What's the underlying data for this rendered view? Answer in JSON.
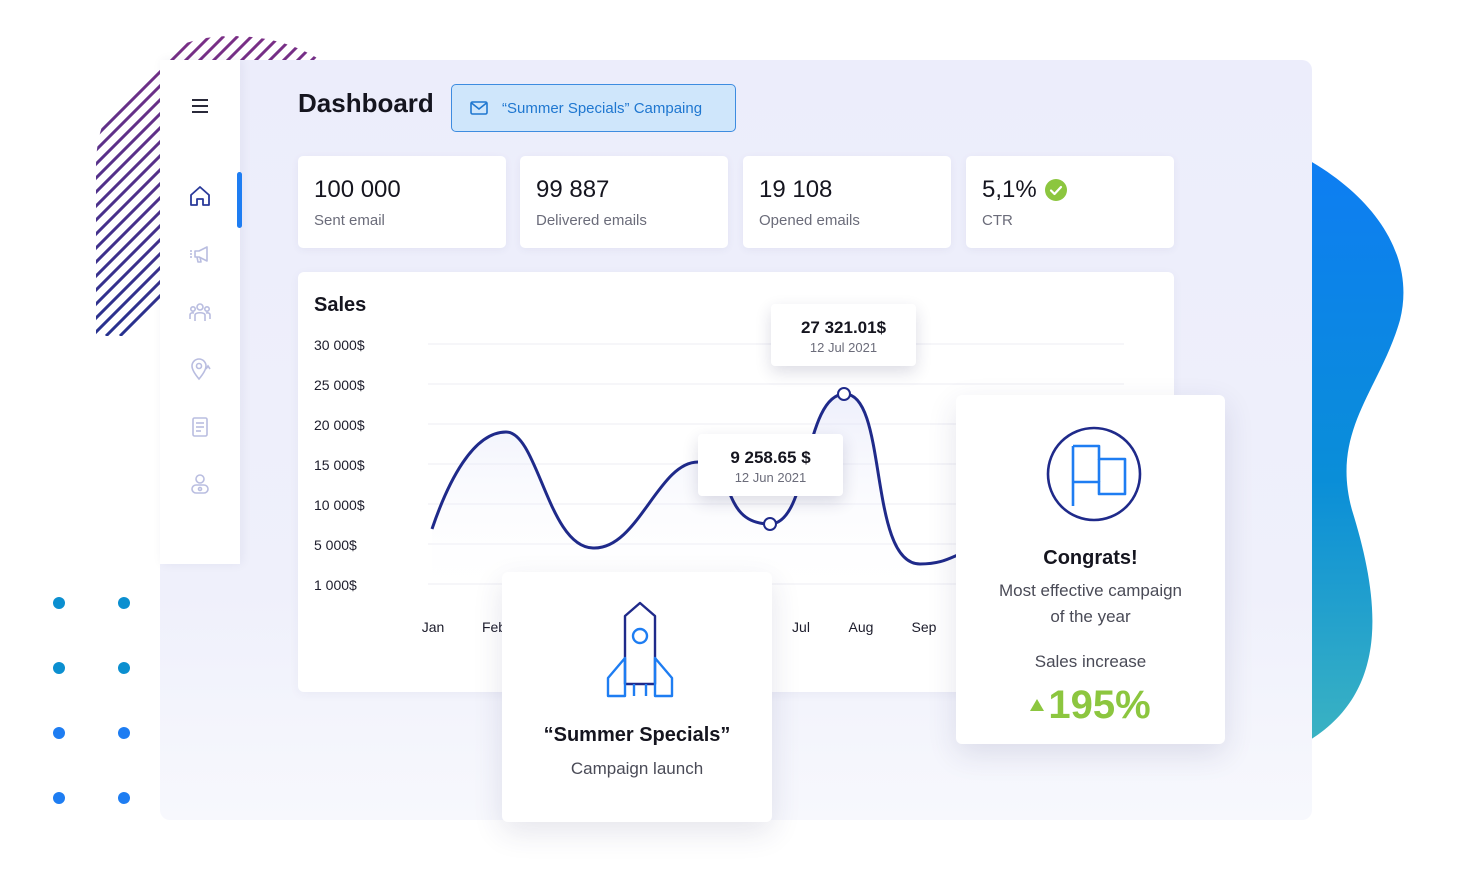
{
  "header": {
    "title": "Dashboard",
    "campaign_chip": "“Summer Specials” Campaing"
  },
  "sidebar": {
    "items": [
      {
        "icon": "menu-icon"
      },
      {
        "icon": "home-icon",
        "active": true
      },
      {
        "icon": "megaphone-icon"
      },
      {
        "icon": "users-icon"
      },
      {
        "icon": "location-icon"
      },
      {
        "icon": "document-icon"
      },
      {
        "icon": "user-icon"
      }
    ]
  },
  "stats": [
    {
      "value": "100 000",
      "label": "Sent email"
    },
    {
      "value": "99 887",
      "label": "Delivered emails"
    },
    {
      "value": "19 108",
      "label": "Opened emails"
    },
    {
      "value": "5,1%",
      "label": "CTR",
      "badge": "check-circle-icon"
    }
  ],
  "sales": {
    "title": "Sales",
    "y_ticks": [
      "30 000$",
      "25 000$",
      "20 000$",
      "15 000$",
      "10 000$",
      "5 000$",
      "1 000$"
    ],
    "x_ticks": [
      "Jan",
      "Feb",
      "Jul",
      "Aug",
      "Sep"
    ],
    "tooltips": [
      {
        "value": "27 321.01$",
        "date": "12 Jul 2021"
      },
      {
        "value": "9 258.65 $",
        "date": "12 Jun 2021"
      }
    ]
  },
  "chart_data": {
    "type": "line",
    "title": "Sales",
    "yticks": [
      "30 000$",
      "25 000$",
      "20 000$",
      "15 000$",
      "10 000$",
      "5 000$",
      "1 000$"
    ],
    "xticks": [
      "Jan",
      "Feb",
      "Jul",
      "Aug",
      "Sep"
    ],
    "annotations": [
      {
        "label": "27 321.01$",
        "date": "12 Jul 2021"
      },
      {
        "label": "9 258.65 $",
        "date": "12 Jun 2021"
      }
    ],
    "grid": true,
    "legend": "none"
  },
  "campaign_card": {
    "title": "“Summer Specials”",
    "subtitle": "Campaign launch",
    "icon": "rocket-icon"
  },
  "congrats_card": {
    "title": "Congrats!",
    "line1": "Most effective campaign",
    "line2": "of the year",
    "metric_label": "Sales increase",
    "metric_value": "195%",
    "icon": "flag-icon"
  },
  "colors": {
    "accent": "#1e7df2",
    "navy": "#1f2a8a",
    "success": "#8cc63f",
    "chip_bg": "#cfe6fb"
  }
}
